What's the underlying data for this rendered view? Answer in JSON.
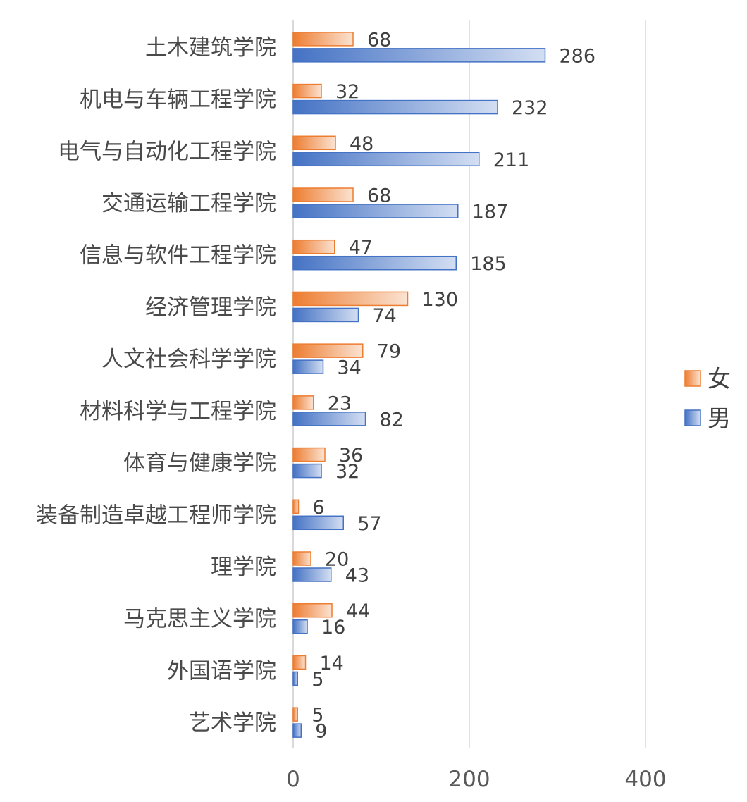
{
  "chart_data": {
    "type": "bar",
    "orientation": "horizontal",
    "categories": [
      "土木建筑学院",
      "机电与车辆工程学院",
      "电气与自动化工程学院",
      "交通运输工程学院",
      "信息与软件工程学院",
      "经济管理学院",
      "人文社会科学学院",
      "材料科学与工程学院",
      "体育与健康学院",
      "装备制造卓越工程师学院",
      "理学院",
      "马克思主义学院",
      "外国语学院",
      "艺术学院"
    ],
    "series": [
      {
        "name": "女",
        "color": "#ed7d31",
        "values": [
          68,
          32,
          48,
          68,
          47,
          130,
          79,
          23,
          36,
          6,
          20,
          44,
          14,
          5
        ]
      },
      {
        "name": "男",
        "color": "#4472c4",
        "values": [
          286,
          232,
          211,
          187,
          185,
          74,
          34,
          82,
          32,
          57,
          43,
          16,
          5,
          9
        ]
      }
    ],
    "xlim": [
      0,
      400
    ],
    "xticks": [
      0,
      200,
      400
    ],
    "grid": true,
    "legend_position": "right",
    "data_labels": true
  }
}
